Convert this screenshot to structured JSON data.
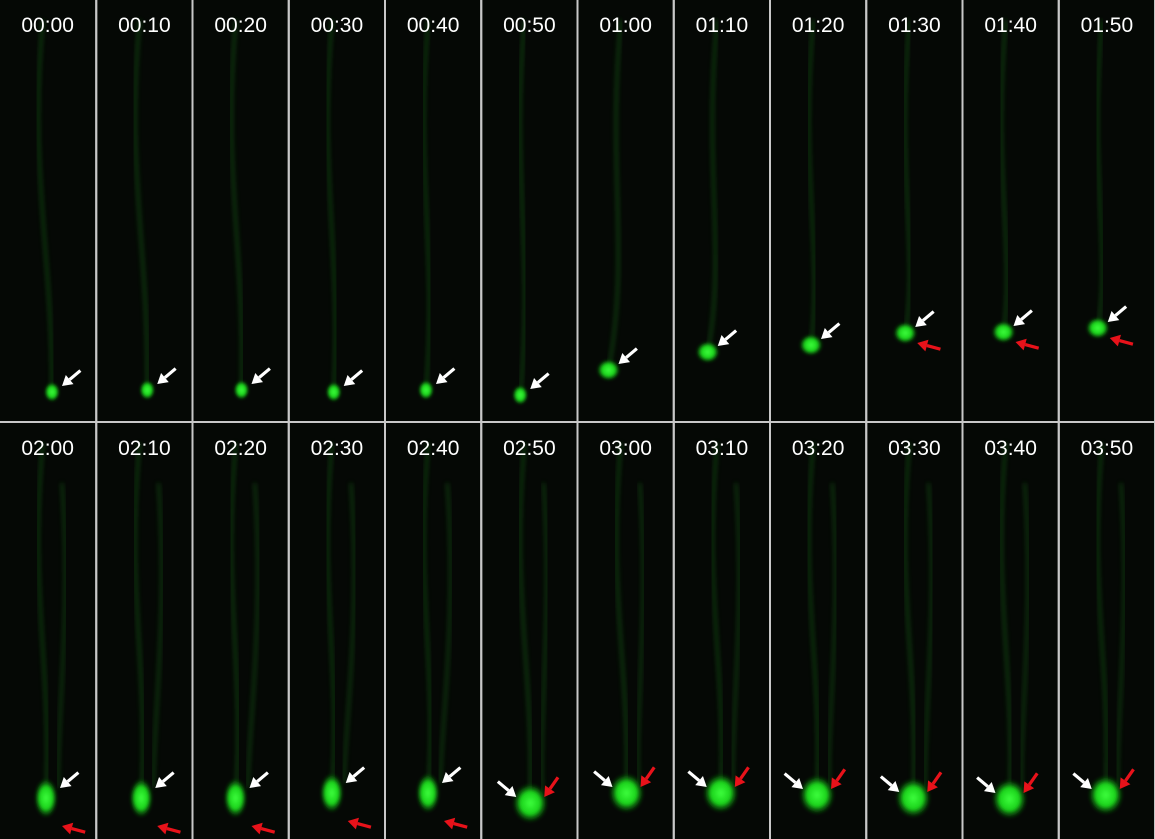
{
  "panels": {
    "rows": [
      [
        "00:00",
        "00:10",
        "00:20",
        "00:30",
        "00:40",
        "00:50",
        "01:00",
        "01:10",
        "01:20",
        "01:30",
        "01:40",
        "01:50"
      ],
      [
        "02:00",
        "02:10",
        "02:20",
        "02:30",
        "02:40",
        "02:50",
        "03:00",
        "03:10",
        "03:20",
        "03:30",
        "03:40",
        "03:50"
      ]
    ]
  }
}
